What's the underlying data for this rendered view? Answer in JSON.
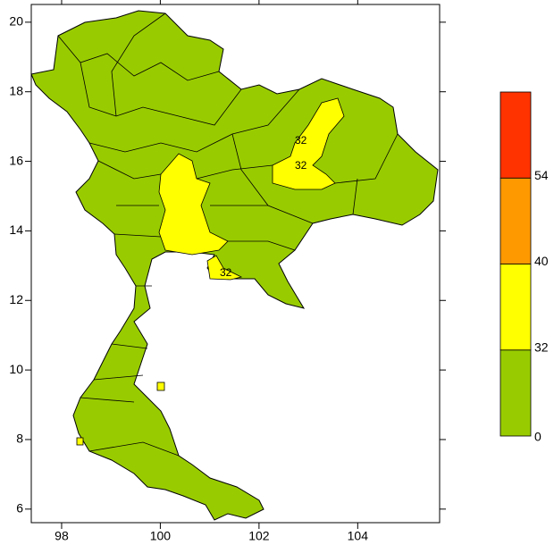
{
  "map": {
    "xlim": [
      97.385,
      105.66
    ],
    "xticks": [
      98,
      100,
      102,
      104
    ],
    "ylim": [
      5.61,
      20.51
    ],
    "yticks": [
      6,
      8,
      10,
      12,
      14,
      16,
      18,
      20
    ],
    "contour_labels": [
      "32",
      "32",
      "32"
    ],
    "colorbar": {
      "levels": [
        0,
        32,
        40,
        54
      ],
      "colors": [
        "#99cc00",
        "#ffff00",
        "#ff9900",
        "#ff3300"
      ]
    }
  }
}
